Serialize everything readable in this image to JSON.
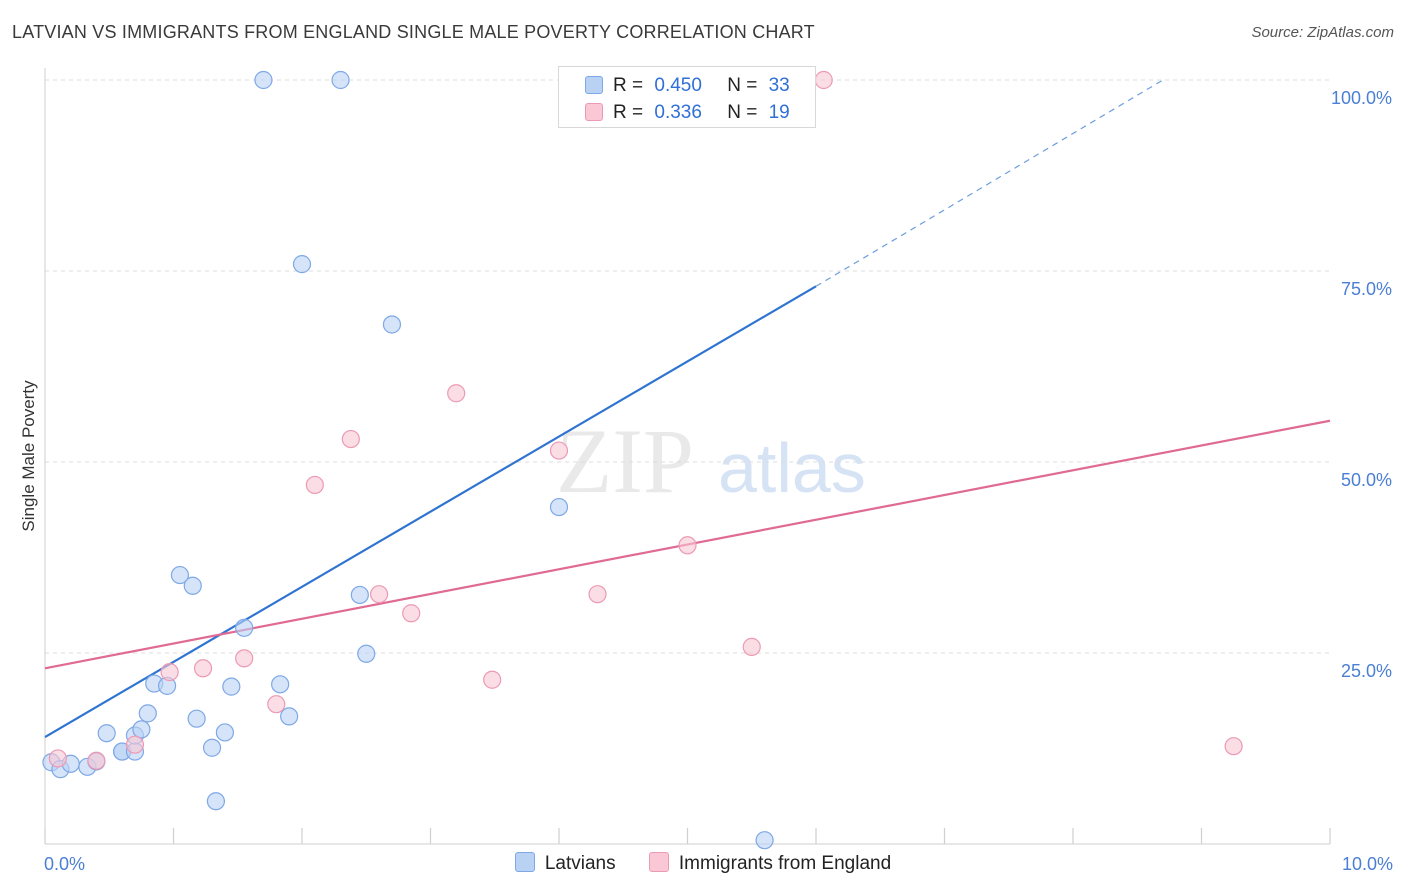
{
  "title": "LATVIAN VS IMMIGRANTS FROM ENGLAND SINGLE MALE POVERTY CORRELATION CHART",
  "source": "Source: ZipAtlas.com",
  "watermark": {
    "zip": "ZIP",
    "atlas": "atlas"
  },
  "legend_top": {
    "rows": [
      {
        "r_label": "R =",
        "r_value": "0.450",
        "n_label": "N =",
        "n_value": "33"
      },
      {
        "r_label": "R =",
        "r_value": "0.336",
        "n_label": "N =",
        "n_value": "19"
      }
    ]
  },
  "legend_bottom": {
    "latvians": "Latvians",
    "england": "Immigrants from England"
  },
  "colors": {
    "blue_fill": "#b9d2f4",
    "blue_stroke": "#7ea8e6",
    "blue_line": "#2f74d0",
    "pink_fill": "#f9c7d6",
    "pink_stroke": "#ec9ab4",
    "pink_line": "#e06a94",
    "tick_text": "#4a7fd4",
    "grid": "#dcdcdc"
  },
  "chart_data": {
    "type": "scatter",
    "title": "LATVIAN VS IMMIGRANTS FROM ENGLAND SINGLE MALE POVERTY CORRELATION CHART",
    "xlabel": "",
    "ylabel": "Single Male Poverty",
    "xlim": [
      0,
      10
    ],
    "ylim": [
      0,
      100
    ],
    "x_tick_labels": [
      "0.0%",
      "10.0%"
    ],
    "y_tick_labels": [
      "25.0%",
      "50.0%",
      "75.0%",
      "100.0%"
    ],
    "y_ticks": [
      25,
      50,
      75,
      100
    ],
    "x_minor_ticks": [
      0,
      1,
      2,
      3,
      4,
      5,
      6,
      7,
      8,
      9,
      10
    ],
    "grid": true,
    "legend_position": "top-center",
    "series": [
      {
        "name": "Latvians",
        "R": 0.45,
        "N": 33,
        "points": [
          [
            0.05,
            10.7
          ],
          [
            0.12,
            9.8
          ],
          [
            0.2,
            10.5
          ],
          [
            0.33,
            10.1
          ],
          [
            0.4,
            10.8
          ],
          [
            0.48,
            14.5
          ],
          [
            0.6,
            12.1
          ],
          [
            0.6,
            12.1
          ],
          [
            0.7,
            12.1
          ],
          [
            0.7,
            14.2
          ],
          [
            0.75,
            15.0
          ],
          [
            0.8,
            17.1
          ],
          [
            0.85,
            21.0
          ],
          [
            0.95,
            20.7
          ],
          [
            1.05,
            35.2
          ],
          [
            1.15,
            33.8
          ],
          [
            1.18,
            16.4
          ],
          [
            1.3,
            12.6
          ],
          [
            1.33,
            5.6
          ],
          [
            1.4,
            14.6
          ],
          [
            1.45,
            20.6
          ],
          [
            1.55,
            28.3
          ],
          [
            1.83,
            20.9
          ],
          [
            1.9,
            16.7
          ],
          [
            1.7,
            100.0
          ],
          [
            2.0,
            75.9
          ],
          [
            2.3,
            100.0
          ],
          [
            2.45,
            32.6
          ],
          [
            2.5,
            24.9
          ],
          [
            2.7,
            68.0
          ],
          [
            4.0,
            44.1
          ],
          [
            5.6,
            0.5
          ],
          [
            4.7,
            100.0
          ]
        ],
        "trend": {
          "x": [
            0,
            6.0
          ],
          "y": [
            14.0,
            73.0
          ],
          "dashed_extension_to": [
            8.7,
            100.0
          ]
        }
      },
      {
        "name": "Immigrants from England",
        "R": 0.336,
        "N": 19,
        "points": [
          [
            0.1,
            11.2
          ],
          [
            0.4,
            10.9
          ],
          [
            0.7,
            13.0
          ],
          [
            0.97,
            22.5
          ],
          [
            1.23,
            23.0
          ],
          [
            1.55,
            24.3
          ],
          [
            1.8,
            18.3
          ],
          [
            2.1,
            47.0
          ],
          [
            2.38,
            53.0
          ],
          [
            2.6,
            32.7
          ],
          [
            2.85,
            30.2
          ],
          [
            3.2,
            59.0
          ],
          [
            3.48,
            21.5
          ],
          [
            4.0,
            51.5
          ],
          [
            4.3,
            32.7
          ],
          [
            5.0,
            39.1
          ],
          [
            5.5,
            25.8
          ],
          [
            6.06,
            100.0
          ],
          [
            9.25,
            12.8
          ]
        ],
        "trend": {
          "x": [
            0,
            10
          ],
          "y": [
            23.0,
            55.4
          ]
        }
      }
    ]
  }
}
